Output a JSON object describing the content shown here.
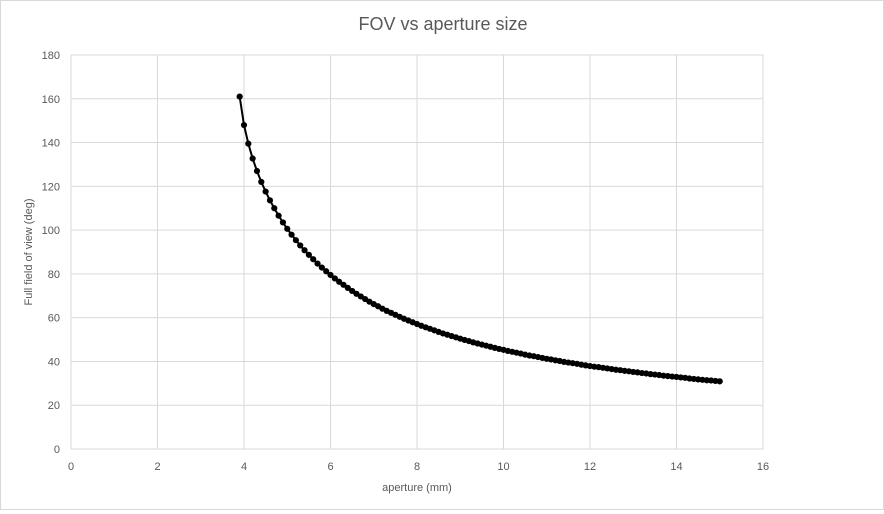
{
  "chart_data": {
    "type": "scatter",
    "title": "FOV vs aperture size",
    "xlabel": "aperture (mm)",
    "ylabel": "Full field of view (deg)",
    "xlim": [
      0,
      16
    ],
    "ylim": [
      0,
      180
    ],
    "xticks": [
      0,
      2,
      4,
      6,
      8,
      10,
      12,
      14,
      16
    ],
    "yticks": [
      0,
      20,
      40,
      60,
      80,
      100,
      120,
      140,
      160,
      180
    ],
    "grid": true,
    "legend": "none",
    "colors": {
      "series": "#000000",
      "grid": "#d9d9d9",
      "text": "#595959"
    },
    "series": [
      {
        "x": [
          3.9,
          4.0,
          4.1,
          4.2,
          4.3,
          4.4,
          4.5,
          4.6,
          4.7,
          4.8,
          4.9,
          5.0,
          5.1,
          5.2,
          5.3,
          5.4,
          5.5,
          5.6,
          5.7,
          5.8,
          5.9,
          6.0,
          6.1,
          6.2,
          6.3,
          6.4,
          6.5,
          6.6,
          6.7,
          6.8,
          6.9,
          7.0,
          7.1,
          7.2,
          7.3,
          7.4,
          7.5,
          7.6,
          7.7,
          7.8,
          7.9,
          8.0,
          8.1,
          8.2,
          8.3,
          8.4,
          8.5,
          8.6,
          8.7,
          8.8,
          8.9,
          9.0,
          9.1,
          9.2,
          9.3,
          9.4,
          9.5,
          9.6,
          9.7,
          9.8,
          9.9,
          10.0,
          10.1,
          10.2,
          10.3,
          10.4,
          10.5,
          10.6,
          10.7,
          10.8,
          10.9,
          11.0,
          11.1,
          11.2,
          11.3,
          11.4,
          11.5,
          11.6,
          11.7,
          11.8,
          11.9,
          12.0,
          12.1,
          12.2,
          12.3,
          12.4,
          12.5,
          12.6,
          12.7,
          12.8,
          12.9,
          13.0,
          13.1,
          13.2,
          13.3,
          13.4,
          13.5,
          13.6,
          13.7,
          13.8,
          13.9,
          14.0,
          14.1,
          14.2,
          14.3,
          14.4,
          14.5,
          14.6,
          14.7,
          14.8,
          14.9,
          15.0
        ],
        "y": [
          161.0,
          148.0,
          139.5,
          132.7,
          127.0,
          122.0,
          117.6,
          113.6,
          110.0,
          106.6,
          103.5,
          100.6,
          97.9,
          95.4,
          93.0,
          90.8,
          88.7,
          86.7,
          84.7,
          82.9,
          81.2,
          79.5,
          77.9,
          76.4,
          75.0,
          73.6,
          72.2,
          70.9,
          69.7,
          68.5,
          67.3,
          66.2,
          65.2,
          64.1,
          63.1,
          62.2,
          61.3,
          60.4,
          59.5,
          58.7,
          57.9,
          57.1,
          56.3,
          55.6,
          54.9,
          54.2,
          53.5,
          52.8,
          52.2,
          51.6,
          51.0,
          50.4,
          49.8,
          49.3,
          48.7,
          48.2,
          47.7,
          47.2,
          46.7,
          46.2,
          45.7,
          45.3,
          44.8,
          44.4,
          44.0,
          43.6,
          43.1,
          42.7,
          42.4,
          42.0,
          41.6,
          41.2,
          40.9,
          40.5,
          40.2,
          39.8,
          39.5,
          39.2,
          38.9,
          38.5,
          38.2,
          37.9,
          37.6,
          37.4,
          37.1,
          36.8,
          36.5,
          36.2,
          36.0,
          35.7,
          35.5,
          35.2,
          35.0,
          34.7,
          34.5,
          34.2,
          34.0,
          33.8,
          33.5,
          33.3,
          33.1,
          32.9,
          32.7,
          32.5,
          32.2,
          32.0,
          31.8,
          31.6,
          31.4,
          31.3,
          31.1,
          30.9
        ]
      }
    ]
  }
}
